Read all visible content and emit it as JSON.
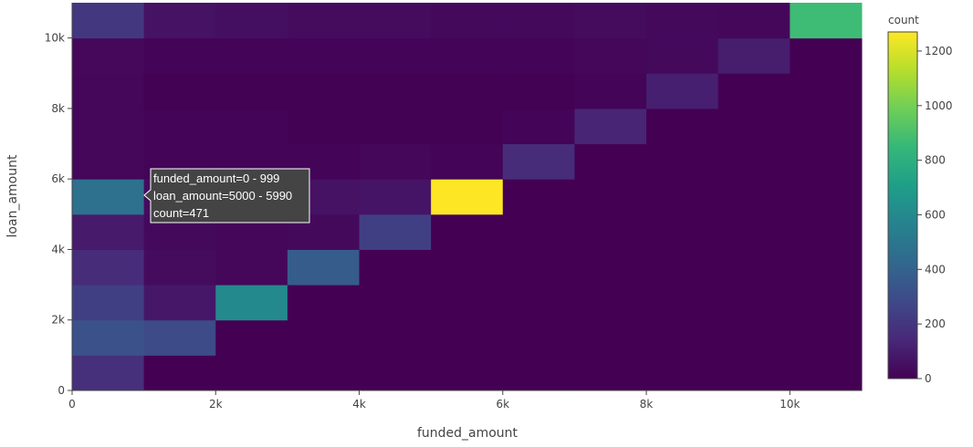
{
  "chart_data": {
    "type": "heatmap",
    "title": "",
    "xlabel": "funded_amount",
    "ylabel": "loan_amount",
    "colorbar_title": "count",
    "colorscale": "viridis",
    "zlim": [
      0,
      1270
    ],
    "xlim": [
      0,
      11000
    ],
    "ylim": [
      0,
      11000
    ],
    "x_bin_size": 1000,
    "y_bin_size": 1000,
    "x_ticks": [
      {
        "value": 0,
        "label": "0"
      },
      {
        "value": 2000,
        "label": "2k"
      },
      {
        "value": 4000,
        "label": "4k"
      },
      {
        "value": 6000,
        "label": "6k"
      },
      {
        "value": 8000,
        "label": "8k"
      },
      {
        "value": 10000,
        "label": "10k"
      }
    ],
    "y_ticks": [
      {
        "value": 0,
        "label": "0"
      },
      {
        "value": 2000,
        "label": "2k"
      },
      {
        "value": 4000,
        "label": "4k"
      },
      {
        "value": 6000,
        "label": "6k"
      },
      {
        "value": 8000,
        "label": "8k"
      },
      {
        "value": 10000,
        "label": "10k"
      }
    ],
    "colorbar_ticks": [
      {
        "value": 0,
        "label": "0"
      },
      {
        "value": 200,
        "label": "200"
      },
      {
        "value": 400,
        "label": "400"
      },
      {
        "value": 600,
        "label": "600"
      },
      {
        "value": 800,
        "label": "800"
      },
      {
        "value": 1000,
        "label": "1000"
      },
      {
        "value": 1200,
        "label": "1200"
      }
    ],
    "z": [
      [
        170,
        0,
        0,
        0,
        0,
        0,
        0,
        0,
        0,
        0,
        0
      ],
      [
        320,
        290,
        0,
        0,
        0,
        0,
        0,
        0,
        0,
        0,
        0
      ],
      [
        240,
        80,
        600,
        0,
        0,
        0,
        0,
        0,
        0,
        0,
        0
      ],
      [
        160,
        40,
        20,
        370,
        0,
        0,
        0,
        0,
        0,
        0,
        0
      ],
      [
        90,
        30,
        20,
        30,
        240,
        0,
        0,
        0,
        0,
        0,
        0
      ],
      [
        471,
        40,
        30,
        60,
        70,
        1270,
        0,
        0,
        0,
        0,
        0
      ],
      [
        20,
        10,
        10,
        10,
        20,
        10,
        160,
        0,
        0,
        0,
        0
      ],
      [
        20,
        10,
        10,
        5,
        5,
        5,
        10,
        130,
        0,
        0,
        0
      ],
      [
        20,
        5,
        5,
        5,
        5,
        5,
        5,
        10,
        110,
        0,
        0
      ],
      [
        25,
        10,
        10,
        10,
        10,
        10,
        10,
        20,
        30,
        100,
        0
      ],
      [
        210,
        60,
        50,
        40,
        40,
        30,
        30,
        40,
        30,
        20,
        870
      ]
    ],
    "hover": {
      "line1": "funded_amount=0 - 999",
      "line2": "loan_amount=5000 - 5990",
      "line3": "count=471"
    }
  }
}
